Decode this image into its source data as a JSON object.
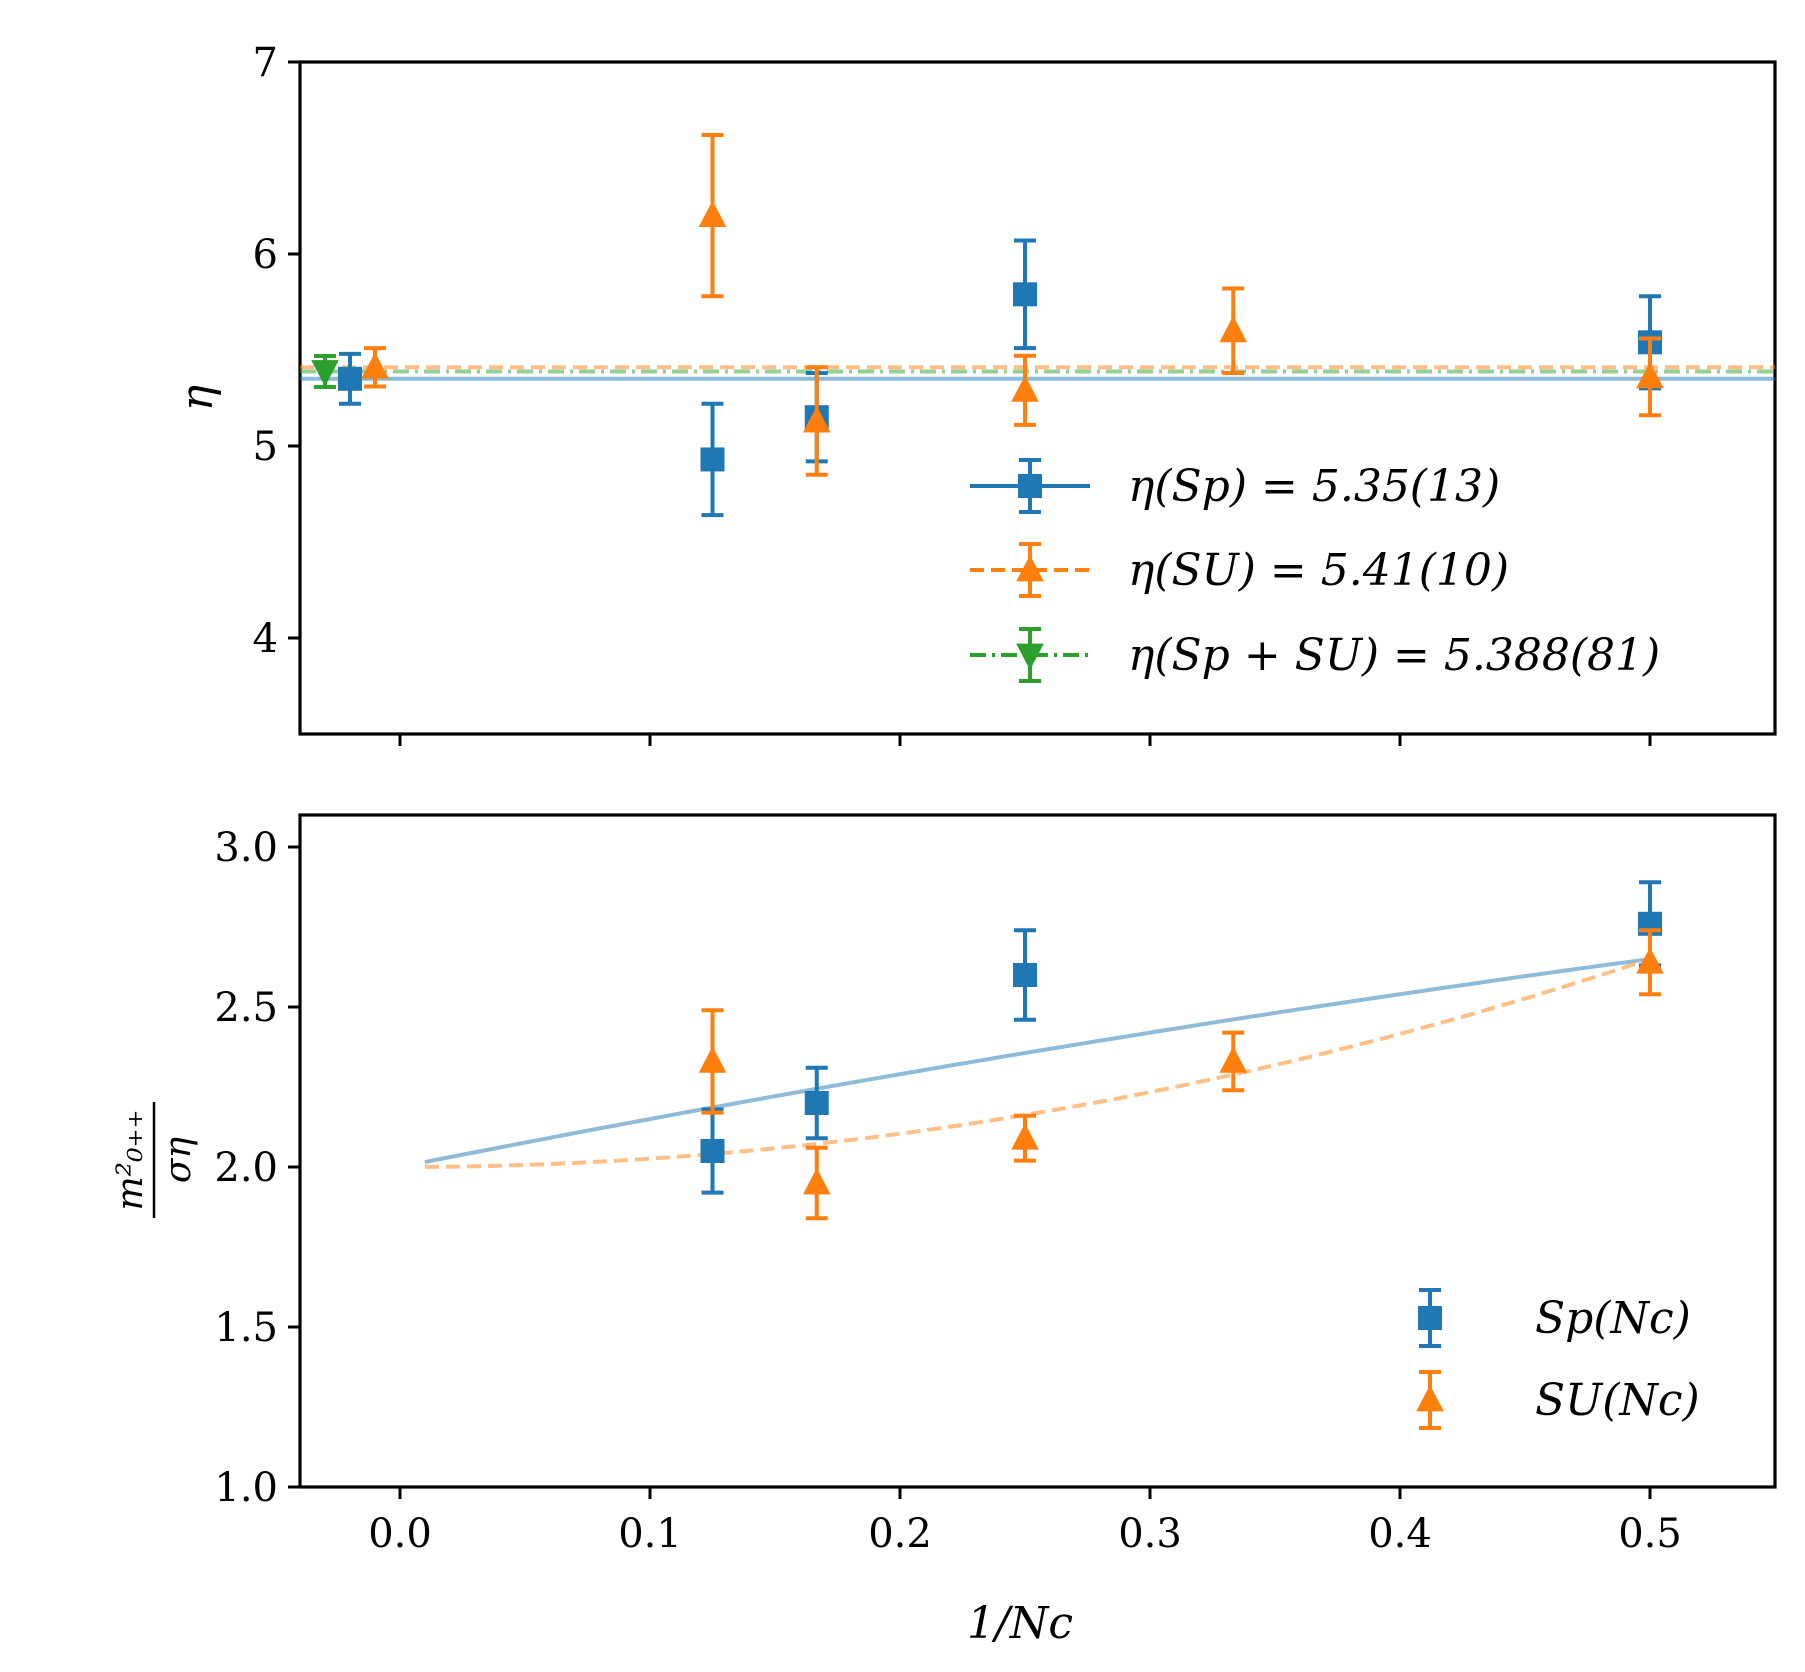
{
  "chart_data": [
    {
      "type": "scatter",
      "ylabel": "η",
      "xlim": [
        -0.04,
        0.55
      ],
      "ylim": [
        3.5,
        7.0
      ],
      "yticks": [
        4,
        5,
        6,
        7
      ],
      "show_x_tick_labels": false,
      "legend_position": "lower-right",
      "series": [
        {
          "name": "η(Sp) = 5.35(13)",
          "color": "#1f77b4",
          "marker": "square",
          "line": "solid",
          "fit_value": 5.35,
          "points": [
            {
              "x": -0.02,
              "y": 5.35,
              "err": 0.13
            },
            {
              "x": 0.125,
              "y": 4.93,
              "err": 0.29
            },
            {
              "x": 0.1667,
              "y": 5.15,
              "err": 0.23
            },
            {
              "x": 0.25,
              "y": 5.79,
              "err": 0.28
            },
            {
              "x": 0.5,
              "y": 5.54,
              "err": 0.24
            }
          ]
        },
        {
          "name": "η(SU) = 5.41(10)",
          "color": "#ff7f0e",
          "marker": "triangle-up",
          "line": "dashed",
          "fit_value": 5.41,
          "points": [
            {
              "x": -0.01,
              "y": 5.41,
              "err": 0.1
            },
            {
              "x": 0.125,
              "y": 6.2,
              "err": 0.42
            },
            {
              "x": 0.1667,
              "y": 5.13,
              "err": 0.28
            },
            {
              "x": 0.25,
              "y": 5.29,
              "err": 0.18
            },
            {
              "x": 0.3333,
              "y": 5.6,
              "err": 0.22
            },
            {
              "x": 0.5,
              "y": 5.36,
              "err": 0.2
            }
          ]
        },
        {
          "name": "η(Sp + SU) = 5.388(81)",
          "color": "#2ca02c",
          "marker": "triangle-down",
          "line": "dashdot",
          "fit_value": 5.388,
          "points": [
            {
              "x": -0.03,
              "y": 5.388,
              "err": 0.081
            }
          ]
        }
      ]
    },
    {
      "type": "scatter",
      "xlabel": "1/Nc",
      "ylabel": "m²₀₊₊ / ση",
      "ylabel_numerator": "m²₀₊₊",
      "ylabel_denominator": "ση",
      "xlim": [
        -0.04,
        0.55
      ],
      "ylim": [
        1.0,
        3.1
      ],
      "xticks": [
        0.0,
        0.1,
        0.2,
        0.3,
        0.4,
        0.5
      ],
      "xtick_labels": [
        "0.0",
        "0.1",
        "0.2",
        "0.3",
        "0.4",
        "0.5"
      ],
      "yticks": [
        1.0,
        1.5,
        2.0,
        2.5,
        3.0
      ],
      "ytick_labels": [
        "1.0",
        "1.5",
        "2.0",
        "2.5",
        "3.0"
      ],
      "legend_position": "lower-right",
      "series": [
        {
          "name": "Sp(Nc)",
          "color": "#1f77b4",
          "marker": "square",
          "points": [
            {
              "x": 0.125,
              "y": 2.05,
              "err": 0.13
            },
            {
              "x": 0.1667,
              "y": 2.2,
              "err": 0.11
            },
            {
              "x": 0.25,
              "y": 2.6,
              "err": 0.14
            },
            {
              "x": 0.5,
              "y": 2.76,
              "err": 0.13
            }
          ]
        },
        {
          "name": "SU(Nc)",
          "color": "#ff7f0e",
          "marker": "triangle-up",
          "points": [
            {
              "x": 0.125,
              "y": 2.33,
              "err": 0.16
            },
            {
              "x": 0.1667,
              "y": 1.95,
              "err": 0.11
            },
            {
              "x": 0.25,
              "y": 2.09,
              "err": 0.07
            },
            {
              "x": 0.3333,
              "y": 2.33,
              "err": 0.09
            },
            {
              "x": 0.5,
              "y": 2.64,
              "err": 0.1
            }
          ]
        }
      ],
      "fits": [
        {
          "name": "Sp fit",
          "color": "#1f77b4",
          "style": "solid",
          "x_start": 0.01,
          "x_end": 0.5,
          "a": 2.0,
          "b": 1.55,
          "c": -0.5
        },
        {
          "name": "SU fit",
          "color": "#ff7f0e",
          "style": "dashed",
          "x_start": 0.01,
          "x_end": 0.5,
          "a": 2.0,
          "b": 0.0,
          "c": 2.6
        }
      ]
    }
  ]
}
